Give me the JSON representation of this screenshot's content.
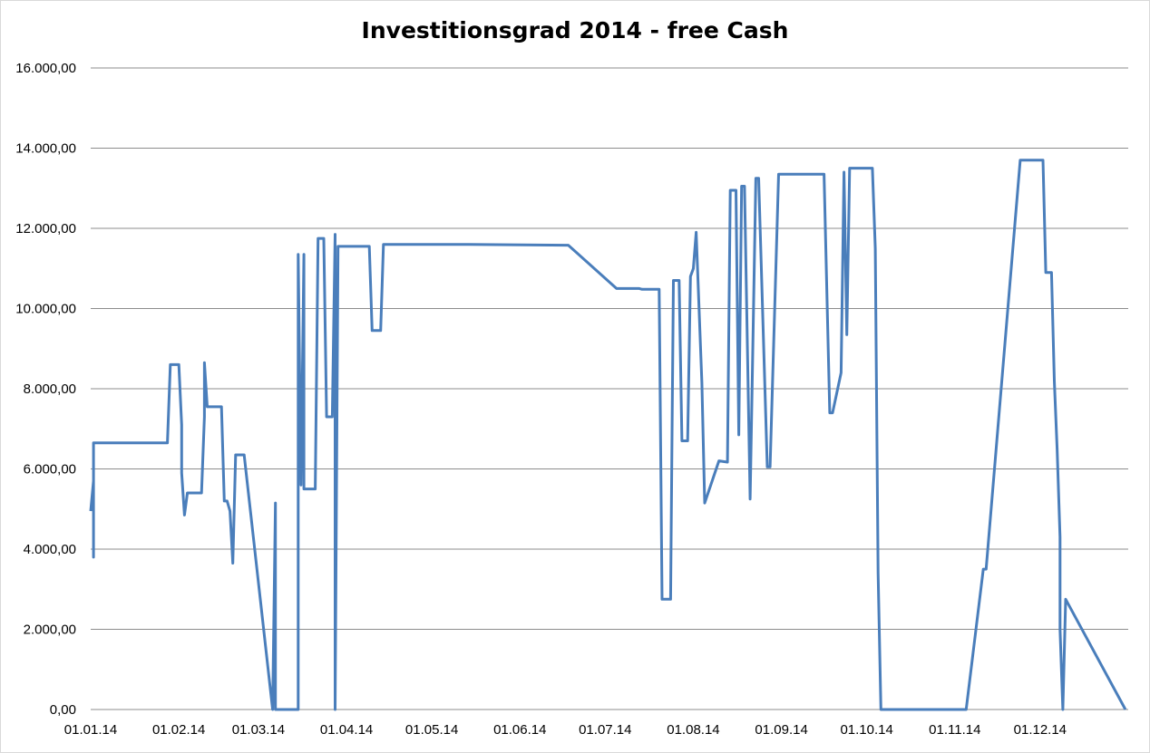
{
  "chart_data": {
    "type": "line",
    "title": "Investitionsgrad 2014 - free Cash",
    "xlabel": "",
    "ylabel": "",
    "ylim": [
      0,
      16000
    ],
    "x_range": [
      "2014-01-01",
      "2014-12-31"
    ],
    "grid": true,
    "legend": "none",
    "y_ticks": [
      "0,00",
      "2.000,00",
      "4.000,00",
      "6.000,00",
      "8.000,00",
      "10.000,00",
      "12.000,00",
      "14.000,00",
      "16.000,00"
    ],
    "x_ticks": [
      "01.01.14",
      "01.02.14",
      "01.03.14",
      "01.04.14",
      "01.05.14",
      "01.06.14",
      "01.07.14",
      "01.08.14",
      "01.09.14",
      "01.10.14",
      "01.11.14",
      "01.12.14"
    ],
    "series_color": "#4a7ebb",
    "series": [
      {
        "x": [
          "2014-01-01",
          "2014-01-02",
          "2014-01-02",
          "2014-01-02",
          "2014-01-28",
          "2014-01-29",
          "2014-02-01",
          "2014-02-02",
          "2014-02-02",
          "2014-02-03",
          "2014-02-04",
          "2014-02-04",
          "2014-02-09",
          "2014-02-10",
          "2014-02-10",
          "2014-02-11",
          "2014-02-16",
          "2014-02-17",
          "2014-02-18",
          "2014-02-19",
          "2014-02-20",
          "2014-02-21",
          "2014-02-22",
          "2014-02-24",
          "2014-03-06",
          "2014-03-07",
          "2014-03-07",
          "2014-03-08",
          "2014-03-15",
          "2014-03-15",
          "2014-03-16",
          "2014-03-17",
          "2014-03-17",
          "2014-03-21",
          "2014-03-22",
          "2014-03-24",
          "2014-03-25",
          "2014-03-27",
          "2014-03-28",
          "2014-03-28",
          "2014-03-29",
          "2014-04-09",
          "2014-04-10",
          "2014-04-13",
          "2014-04-14",
          "2014-05-14",
          "2014-06-17",
          "2014-06-18",
          "2014-07-05",
          "2014-07-13",
          "2014-07-14",
          "2014-07-20",
          "2014-07-21",
          "2014-07-22",
          "2014-07-24",
          "2014-07-25",
          "2014-07-27",
          "2014-07-28",
          "2014-07-30",
          "2014-07-31",
          "2014-08-01",
          "2014-08-02",
          "2014-08-04",
          "2014-08-05",
          "2014-08-10",
          "2014-08-13",
          "2014-08-14",
          "2014-08-16",
          "2014-08-17",
          "2014-08-18",
          "2014-08-19",
          "2014-08-21",
          "2014-08-23",
          "2014-08-24",
          "2014-08-27",
          "2014-08-28",
          "2014-08-31",
          "2014-09-01",
          "2014-09-16",
          "2014-09-18",
          "2014-09-19",
          "2014-09-22",
          "2014-09-23",
          "2014-09-24",
          "2014-09-24",
          "2014-09-25",
          "2014-09-26",
          "2014-10-03",
          "2014-10-04",
          "2014-10-05",
          "2014-10-06",
          "2014-10-31",
          "2014-11-01",
          "2014-11-05",
          "2014-11-11",
          "2014-11-12",
          "2014-11-24",
          "2014-11-25",
          "2014-12-02",
          "2014-12-03",
          "2014-12-04",
          "2014-12-05",
          "2014-12-06",
          "2014-12-07",
          "2014-12-08",
          "2014-12-08",
          "2014-12-09",
          "2014-12-09",
          "2014-12-10",
          "2014-12-31"
        ],
        "y": [
          4950,
          5700,
          3800,
          6650,
          6650,
          8600,
          8600,
          7100,
          5900,
          4850,
          5400,
          5400,
          5400,
          7300,
          8650,
          7550,
          7550,
          5200,
          5200,
          4950,
          3650,
          6350,
          6350,
          6350,
          0,
          5150,
          0,
          0,
          0,
          11350,
          5600,
          11350,
          5500,
          5500,
          11750,
          11750,
          7300,
          7300,
          11850,
          0,
          11550,
          11550,
          9450,
          9450,
          11600,
          11600,
          11580,
          11580,
          10500,
          10500,
          10480,
          10480,
          2750,
          2750,
          2750,
          10700,
          10700,
          6700,
          6700,
          10800,
          11000,
          11900,
          8150,
          5150,
          6200,
          6170,
          12950,
          12950,
          6850,
          13050,
          13050,
          5250,
          13250,
          13250,
          6050,
          6050,
          13350,
          13350,
          13350,
          7400,
          7400,
          8400,
          13400,
          9350,
          9350,
          13500,
          13500,
          13500,
          11500,
          3400,
          0,
          0,
          0,
          0,
          3500,
          3500,
          13700,
          13700,
          13700,
          10900,
          10900,
          10900,
          8200,
          6500,
          4300,
          2000,
          0,
          0,
          2750,
          0
        ]
      }
    ]
  }
}
